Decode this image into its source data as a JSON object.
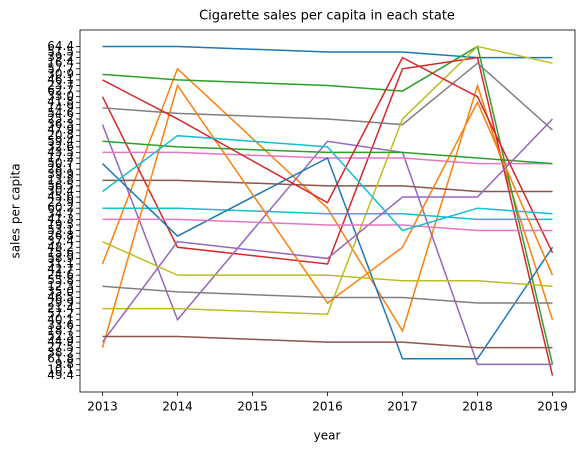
{
  "chart_data": {
    "type": "line",
    "title": "Cigarette sales per capita in each state",
    "xlabel": "year",
    "ylabel": "sales per capita",
    "x": [
      2013,
      2014,
      2016,
      2017,
      2018,
      2019
    ],
    "xlim": [
      2012.7,
      2019.3
    ],
    "xticks": [
      2013,
      2014,
      2015,
      2016,
      2017,
      2018,
      2019
    ],
    "ycategories": [
      "49.4",
      "10.1",
      "9.8",
      "61.8",
      "38.2",
      "27.5",
      "44.9",
      "52.3",
      "18.7",
      "33.6",
      "40.1",
      "57.2",
      "21.4",
      "29.9",
      "46.5",
      "35.0",
      "12.3",
      "55.8",
      "24.6",
      "42.7",
      "31.1",
      "58.9",
      "15.6",
      "48.2",
      "37.4",
      "26.8",
      "53.1",
      "19.5",
      "41.3",
      "34.7",
      "60.2",
      "22.9",
      "45.6",
      "30.4",
      "56.5",
      "13.8",
      "39.9",
      "28.1",
      "50.7",
      "17.2",
      "43.5",
      "32.6",
      "59.4",
      "20.8",
      "47.9",
      "36.3",
      "25.2",
      "54.6",
      "14.9",
      "41.8",
      "33.0",
      "62.7",
      "23.7",
      "46.1",
      "30.9",
      "57.7",
      "16.4",
      "39.2",
      "51.5",
      "64.4"
    ],
    "ylim": [
      -2.95,
      61.95
    ],
    "grid": false,
    "series": [
      {
        "color": "#1f77b4",
        "values": [
          "64.4",
          "64.4",
          "51.5",
          "51.5",
          "39.2",
          "39.2"
        ]
      },
      {
        "color": "#ff7f0e",
        "values": [
          "31.1",
          "57.7",
          "60.2",
          "18.7",
          "23.7",
          "40.1"
        ]
      },
      {
        "color": "#2ca02c",
        "values": [
          "30.9",
          "46.1",
          "23.7",
          "62.7",
          "64.4",
          "9.8"
        ]
      },
      {
        "color": "#d62728",
        "values": [
          "33.0",
          "48.2",
          "31.1",
          "57.7",
          "39.2",
          "49.4"
        ]
      },
      {
        "color": "#9467bd",
        "values": [
          "36.3",
          "40.1",
          "59.4",
          "43.5",
          "9.8",
          "9.8"
        ]
      },
      {
        "color": "#8c564b",
        "values": [
          "13.8",
          "13.8",
          "56.5",
          "56.5",
          "30.4",
          "30.4"
        ]
      },
      {
        "color": "#e377c2",
        "values": [
          "43.5",
          "43.5",
          "17.2",
          "17.2",
          "50.7",
          "50.7"
        ]
      },
      {
        "color": "#7f7f7f",
        "values": [
          "14.9",
          "54.6",
          "25.2",
          "36.3",
          "16.4",
          "47.9"
        ]
      },
      {
        "color": "#bcbd22",
        "values": [
          "21.4",
          "21.4",
          "57.2",
          "25.2",
          "64.4",
          "16.4"
        ]
      },
      {
        "color": "#17becf",
        "values": [
          "60.2",
          "60.2",
          "34.7",
          "34.7",
          "41.3",
          "41.3"
        ]
      },
      {
        "color": "#1f77b4",
        "values": [
          "50.7",
          "26.8",
          "17.2",
          "61.8",
          "61.8",
          "48.2"
        ]
      },
      {
        "color": "#ff7f0e",
        "values": [
          "27.5",
          "23.7",
          "29.9",
          "48.2",
          "41.8",
          "24.6"
        ]
      },
      {
        "color": "#2ca02c",
        "values": [
          "59.4",
          "32.6",
          "43.5",
          "43.5",
          "17.2",
          "50.7"
        ]
      },
      {
        "color": "#d62728",
        "values": [
          "46.1",
          "25.2",
          "22.9",
          "39.2",
          "33.0",
          "15.6"
        ]
      },
      {
        "color": "#9467bd",
        "values": [
          "44.9",
          "37.4",
          "58.9",
          "45.6",
          "45.6",
          "25.2"
        ]
      },
      {
        "color": "#8c564b",
        "values": [
          "52.3",
          "52.3",
          "44.9",
          "44.9",
          "27.5",
          "27.5"
        ]
      },
      {
        "color": "#e377c2",
        "values": [
          "41.3",
          "41.3",
          "19.5",
          "19.5",
          "53.1",
          "53.1"
        ]
      },
      {
        "color": "#7f7f7f",
        "values": [
          "12.3",
          "35.0",
          "46.5",
          "46.5",
          "29.9",
          "29.9"
        ]
      },
      {
        "color": "#bcbd22",
        "values": [
          "37.4",
          "24.6",
          "24.6",
          "55.8",
          "55.8",
          "12.3"
        ]
      },
      {
        "color": "#17becf",
        "values": [
          "30.4",
          "20.8",
          "32.6",
          "53.1",
          "60.2",
          "34.7"
        ]
      }
    ]
  }
}
